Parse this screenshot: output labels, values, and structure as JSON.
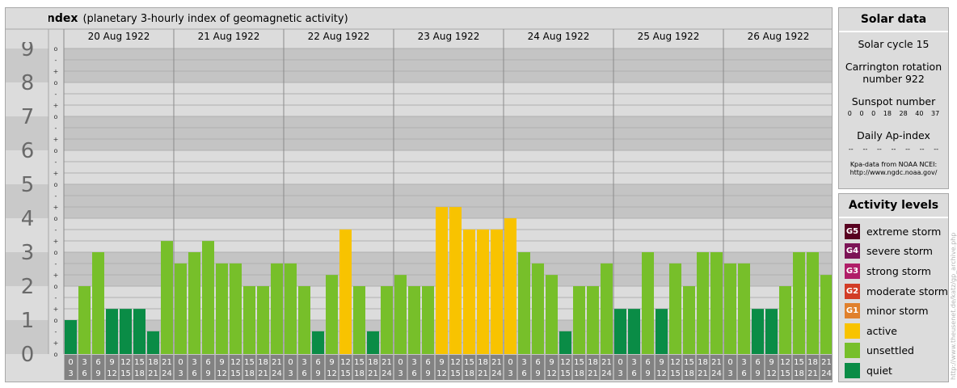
{
  "title": {
    "main": "Kpa-index",
    "sub": "(planetary 3-hourly index of geomagnetic activity)"
  },
  "colors": {
    "quiet": "#0a8c46",
    "unsettled": "#77bf2a",
    "active": "#f8c300",
    "band_dark": "#c4c4c4",
    "band_light": "#dcdcdc",
    "bottom_label_bg": "#828282",
    "extreme_storm": "#580020",
    "severe_storm": "#7c1456",
    "strong_storm": "#b01e68",
    "moderate_storm": "#d23c26",
    "minor_storm": "#e0802c"
  },
  "chart_data": {
    "type": "bar",
    "title": "Kpa-index",
    "subtitle": "(planetary 3-hourly index of geomagnetic activity)",
    "ylim": [
      0,
      9
    ],
    "y_ticks": [
      "0",
      "1",
      "2",
      "3",
      "4",
      "5",
      "6",
      "7",
      "8",
      "9"
    ],
    "sub_ticks": [
      "o",
      "+",
      "-"
    ],
    "days": [
      "20 Aug 1922",
      "21 Aug 1922",
      "22 Aug 1922",
      "23 Aug 1922",
      "24 Aug 1922",
      "25 Aug 1922",
      "26 Aug 1922"
    ],
    "interval_start_labels": [
      "0",
      "3",
      "6",
      "9",
      "12",
      "15",
      "18",
      "21"
    ],
    "interval_end_labels": [
      "3",
      "6",
      "9",
      "12",
      "15",
      "18",
      "21",
      "24"
    ],
    "values": [
      1.0,
      2.0,
      3.0,
      1.33,
      1.33,
      1.33,
      0.67,
      3.33,
      2.67,
      3.0,
      3.33,
      2.67,
      2.67,
      2.0,
      2.0,
      2.67,
      2.67,
      2.0,
      0.67,
      2.33,
      3.67,
      2.0,
      0.67,
      2.0,
      2.33,
      2.0,
      2.0,
      4.33,
      4.33,
      3.67,
      3.67,
      3.67,
      4.0,
      3.0,
      2.67,
      2.33,
      0.67,
      2.0,
      2.0,
      2.67,
      1.33,
      1.33,
      3.0,
      1.33,
      2.67,
      2.0,
      3.0,
      3.0,
      2.67,
      2.67,
      1.33,
      1.33,
      2.0,
      3.0,
      3.0,
      2.33
    ],
    "levels": [
      "quiet",
      "unsettled",
      "unsettled",
      "quiet",
      "quiet",
      "quiet",
      "quiet",
      "unsettled",
      "unsettled",
      "unsettled",
      "unsettled",
      "unsettled",
      "unsettled",
      "unsettled",
      "unsettled",
      "unsettled",
      "unsettled",
      "unsettled",
      "quiet",
      "unsettled",
      "active",
      "unsettled",
      "quiet",
      "unsettled",
      "unsettled",
      "unsettled",
      "unsettled",
      "active",
      "active",
      "active",
      "active",
      "active",
      "active",
      "unsettled",
      "unsettled",
      "unsettled",
      "quiet",
      "unsettled",
      "unsettled",
      "unsettled",
      "quiet",
      "quiet",
      "unsettled",
      "quiet",
      "unsettled",
      "unsettled",
      "unsettled",
      "unsettled",
      "unsettled",
      "unsettled",
      "quiet",
      "quiet",
      "unsettled",
      "unsettled",
      "unsettled",
      "unsettled"
    ]
  },
  "solar": {
    "header": "Solar data",
    "cycle": "Solar cycle 15",
    "carrington_line1": "Carrington rotation",
    "carrington_line2": "number 922",
    "sunspot_label": "Sunspot number",
    "sunspot_values": [
      "0",
      "0",
      "0",
      "18",
      "28",
      "40",
      "37"
    ],
    "ap_label": "Daily Ap-index",
    "ap_values": [
      "--",
      "--",
      "--",
      "--",
      "--",
      "--",
      "--"
    ],
    "source_line1": "Kpa-data from NOAA NCEI:",
    "source_line2": "http://www.ngdc.noaa.gov/"
  },
  "activity": {
    "header": "Activity levels",
    "items": [
      {
        "code": "G5",
        "label": "extreme storm",
        "color": "#580020"
      },
      {
        "code": "G4",
        "label": "severe storm",
        "color": "#7c1456"
      },
      {
        "code": "G3",
        "label": "strong storm",
        "color": "#b01e68"
      },
      {
        "code": "G2",
        "label": "moderate storm",
        "color": "#d23c26"
      },
      {
        "code": "G1",
        "label": "minor storm",
        "color": "#e0802c"
      },
      {
        "code": "",
        "label": "active",
        "color": "#f8c300"
      },
      {
        "code": "",
        "label": "unsettled",
        "color": "#77bf2a"
      },
      {
        "code": "",
        "label": "quiet",
        "color": "#0a8c46"
      }
    ]
  },
  "credit": "http://www.theusenet.de/katz/gp_archive.php"
}
